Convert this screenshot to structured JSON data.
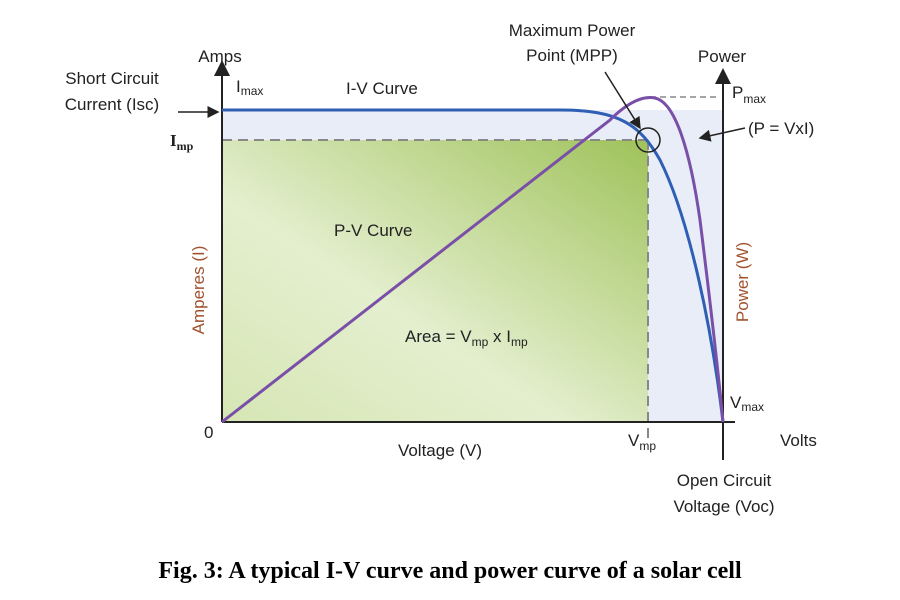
{
  "figure": {
    "left_axis_title": "Amps",
    "isc_label": [
      "Short Circuit",
      "Current (Isc)"
    ],
    "imax_label": {
      "text": "I",
      "sub": "max"
    },
    "iv_curve_label": "I-V Curve",
    "mpp_label": [
      "Maximum Power",
      "Point (MPP)"
    ],
    "right_axis_title": "Power",
    "pmax_label": {
      "text": "P",
      "sub": "max"
    },
    "power_formula": "(P = VxI)",
    "imp_label": {
      "text": "I",
      "sub": "mp"
    },
    "left_axis_label": "Amperes (I)",
    "pv_curve_label": "P-V Curve",
    "area_label": [
      {
        "text": "Area = V",
        "sub": "mp"
      },
      {
        "text": " x I",
        "sub": "mp"
      }
    ],
    "right_axis_label": "Power (W)",
    "origin_label": "0",
    "vmax_label": {
      "text": "V",
      "sub": "max"
    },
    "x_axis_label": "Voltage (V)",
    "vmp_label": {
      "text": "V",
      "sub": "mp"
    },
    "x_axis_title": "Volts",
    "voc_label": [
      "Open Circuit",
      "Voltage (Voc)"
    ],
    "caption": "Fig. 3: A typical I-V curve and power curve of a solar cell"
  }
}
